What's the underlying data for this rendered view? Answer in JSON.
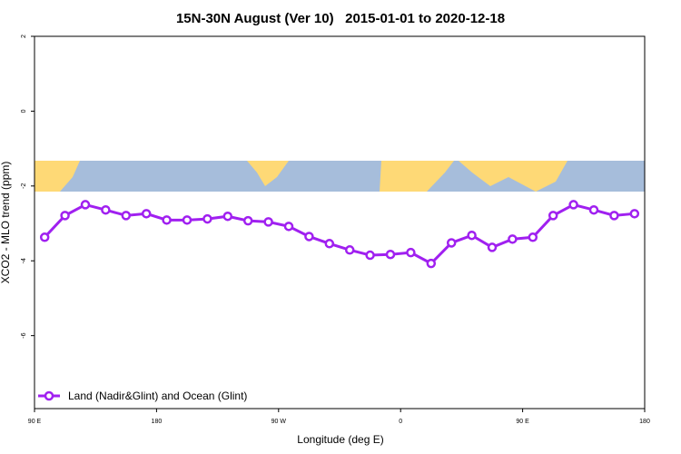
{
  "chart_data": {
    "type": "line",
    "title": "15N-30N August (Ver 10)   2015-01-01 to 2020-12-18",
    "x_label": "Longitude (deg E)",
    "y_label": "XCO2 - MLO trend (ppm)",
    "x": [
      97.5,
      112.5,
      127.5,
      142.5,
      157.5,
      172.5,
      187.5,
      202.5,
      217.5,
      232.5,
      247.5,
      262.5,
      277.5,
      292.5,
      307.5,
      322.5,
      337.5,
      352.5,
      367.5,
      382.5,
      397.5,
      412.5,
      427.5,
      442.5,
      457.5,
      472.5,
      487.5,
      502.5,
      517.5,
      532.5
    ],
    "series": [
      {
        "name": "Land (Nadir&Glint) and Ocean (Glint)",
        "color": "#a020f0",
        "values": [
          -3.37,
          -2.79,
          -2.5,
          -2.64,
          -2.79,
          -2.74,
          -2.91,
          -2.91,
          -2.88,
          -2.81,
          -2.93,
          -2.96,
          -3.08,
          -3.35,
          -3.54,
          -3.71,
          -3.85,
          -3.83,
          -3.78,
          -4.07,
          -3.52,
          -3.32,
          -3.64,
          -3.42,
          -3.37,
          -2.79,
          -2.5,
          -2.64,
          -2.79,
          -2.74
        ]
      }
    ],
    "xlim": [
      90,
      540
    ],
    "xticks": [
      {
        "value": 90,
        "label": "90 E"
      },
      {
        "value": 180,
        "label": "180"
      },
      {
        "value": 270,
        "label": "90 W"
      },
      {
        "value": 360,
        "label": "0"
      },
      {
        "value": 450,
        "label": "90 E"
      },
      {
        "value": 540,
        "label": "180"
      }
    ],
    "ylim": [
      -7.95,
      2
    ],
    "yticks": [
      2,
      0,
      -2,
      -4,
      -6
    ],
    "legend": "bottom-left"
  }
}
